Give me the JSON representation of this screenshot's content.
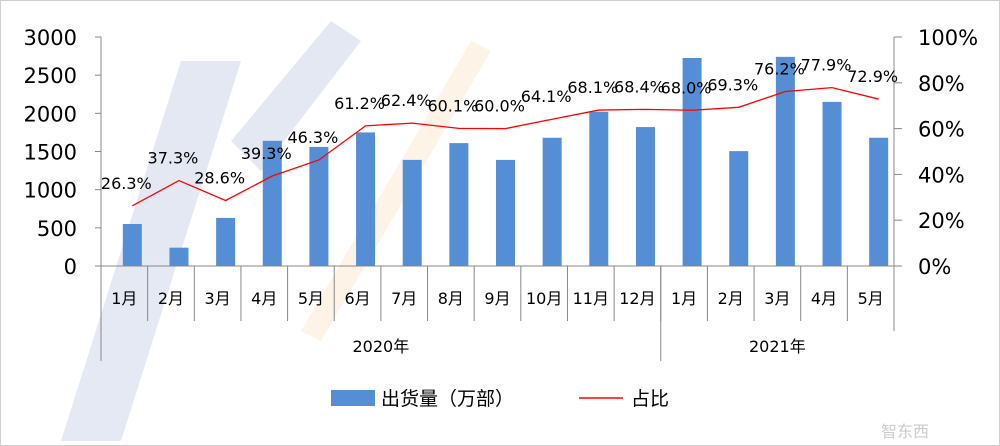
{
  "chart_data": {
    "type": "bar+line",
    "categories": [
      "1月",
      "2月",
      "3月",
      "4月",
      "5月",
      "6月",
      "7月",
      "8月",
      "9月",
      "10月",
      "11月",
      "12月",
      "1月",
      "2月",
      "3月",
      "4月",
      "5月"
    ],
    "groups": [
      {
        "label": "2020年",
        "span": 12
      },
      {
        "label": "2021年",
        "span": 5
      }
    ],
    "series": [
      {
        "name": "出货量（万部）",
        "type": "bar",
        "axis": "left",
        "color": "#558ED5",
        "values": [
          550,
          240,
          630,
          1640,
          1560,
          1750,
          1390,
          1610,
          1390,
          1680,
          2020,
          1820,
          2725,
          1505,
          2740,
          2150,
          1680
        ]
      },
      {
        "name": "占比",
        "type": "line",
        "axis": "right",
        "color": "#FF0000",
        "values": [
          26.3,
          37.3,
          28.6,
          39.3,
          46.3,
          61.2,
          62.4,
          60.1,
          60.0,
          64.1,
          68.1,
          68.4,
          68.0,
          69.3,
          76.2,
          77.9,
          72.9
        ],
        "labels": [
          "26.3%",
          "37.3%",
          "28.6%",
          "39.3%",
          "46.3%",
          "61.2%",
          "62.4%",
          "60.1%",
          "60.0%",
          "64.1%",
          "68.1%",
          "68.4%",
          "68.0%",
          "69.3%",
          "76.2%",
          "77.9%",
          "72.9%"
        ]
      }
    ],
    "y_left": {
      "range": [
        0,
        3000
      ],
      "ticks": [
        "0",
        "500",
        "1000",
        "1500",
        "2000",
        "2500",
        "3000"
      ]
    },
    "y_right": {
      "range": [
        0,
        100
      ],
      "ticks": [
        "0%",
        "20%",
        "40%",
        "60%",
        "80%",
        "100%"
      ]
    },
    "grid": false,
    "legend": "bottom"
  },
  "legend": {
    "bar_label": "出货量（万部）",
    "line_label": "占比"
  },
  "watermark": "智东西"
}
